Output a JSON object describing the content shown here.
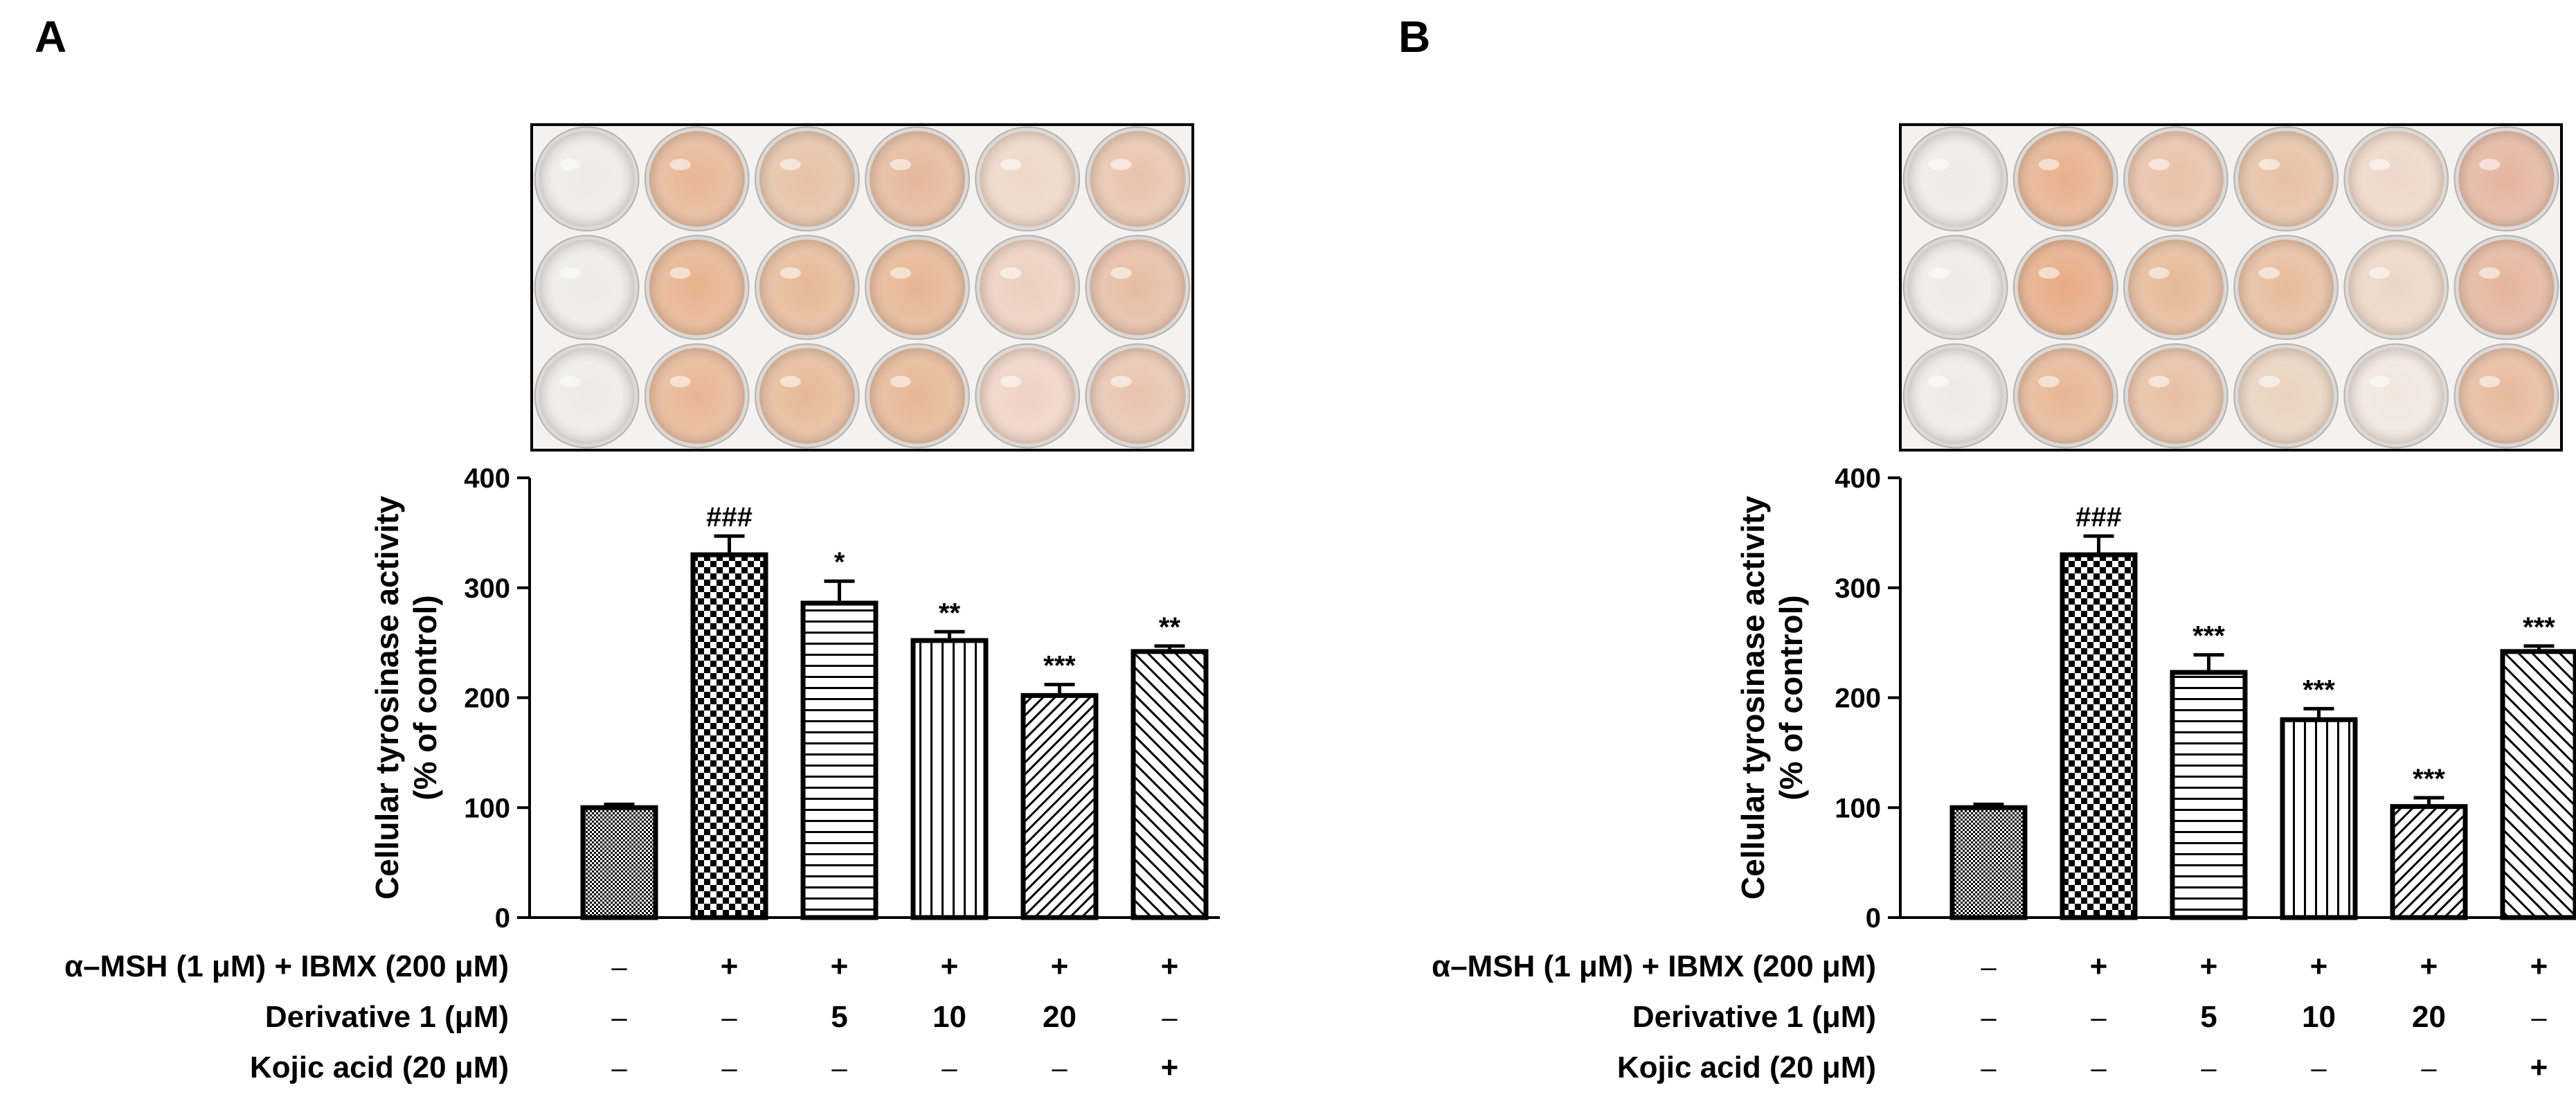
{
  "chart_data": [
    {
      "panel": "A",
      "type": "bar",
      "title": "",
      "ylabel": "Cellular tyrosinase activity",
      "ylabel_line2": "(% of control)",
      "ylim": [
        0,
        400
      ],
      "yticks": [
        0,
        100,
        200,
        300,
        400
      ],
      "values": [
        100,
        330,
        286,
        252,
        202,
        242
      ],
      "errors": [
        3,
        17,
        20,
        8,
        10,
        5
      ],
      "significance": [
        "",
        "###",
        "*",
        "**",
        "***",
        "**"
      ],
      "patterns": [
        "fine",
        "checker",
        "hstripe",
        "vstripe",
        "diag-fine",
        "diag-wide"
      ],
      "conditions": [
        {
          "label": "α–MSH (1 μM) + IBMX (200 μM)",
          "values": [
            "–",
            "+",
            "+",
            "+",
            "+",
            "+"
          ]
        },
        {
          "label": "Derivative 1 (μM)",
          "values": [
            "–",
            "–",
            "5",
            "10",
            "20",
            "–"
          ]
        },
        {
          "label": "Kojic acid (20 μM)",
          "values": [
            "–",
            "–",
            "–",
            "–",
            "–",
            "+"
          ]
        }
      ],
      "plate": [
        [
          "#ecebea",
          "#e7b694",
          "#e6c0a4",
          "#e6b79a",
          "#eed6c6",
          "#e8c2ac"
        ],
        [
          "#ecebea",
          "#e7b28d",
          "#e6b896",
          "#e6b591",
          "#eccfbd",
          "#e5bca2"
        ],
        [
          "#ecebea",
          "#e8b592",
          "#e6b896",
          "#e6b693",
          "#eed2c3",
          "#e7c3ae"
        ]
      ]
    },
    {
      "panel": "B",
      "type": "bar",
      "title": "",
      "ylabel": "Cellular tyrosinase activity",
      "ylabel_line2": "(% of control)",
      "ylim": [
        0,
        400
      ],
      "yticks": [
        0,
        100,
        200,
        300,
        400
      ],
      "values": [
        100,
        330,
        223,
        180,
        101,
        242
      ],
      "errors": [
        3,
        17,
        16,
        10,
        8,
        5
      ],
      "significance": [
        "",
        "###",
        "***",
        "***",
        "***",
        "***"
      ],
      "patterns": [
        "fine",
        "checker",
        "hstripe",
        "vstripe",
        "diag-fine",
        "diag-wide"
      ],
      "conditions": [
        {
          "label": "α–MSH (1 μM) + IBMX (200 μM)",
          "values": [
            "–",
            "+",
            "+",
            "+",
            "+",
            "+"
          ]
        },
        {
          "label": "Derivative 1 (μM)",
          "values": [
            "–",
            "–",
            "5",
            "10",
            "20",
            "–"
          ]
        },
        {
          "label": "Kojic acid (20 μM)",
          "values": [
            "–",
            "–",
            "–",
            "–",
            "–",
            "+"
          ]
        }
      ],
      "plate": [
        [
          "#ecebea",
          "#e7b08c",
          "#e8c0a6",
          "#e6c0a2",
          "#eed6c8",
          "#e5b49e"
        ],
        [
          "#ecebea",
          "#e6ab84",
          "#e6b896",
          "#e6bb9b",
          "#ecd5c6",
          "#e5b49c"
        ],
        [
          "#ecebea",
          "#e7b694",
          "#e7bfa2",
          "#ead2be",
          "#f0e6de",
          "#e7b99c"
        ]
      ]
    }
  ]
}
